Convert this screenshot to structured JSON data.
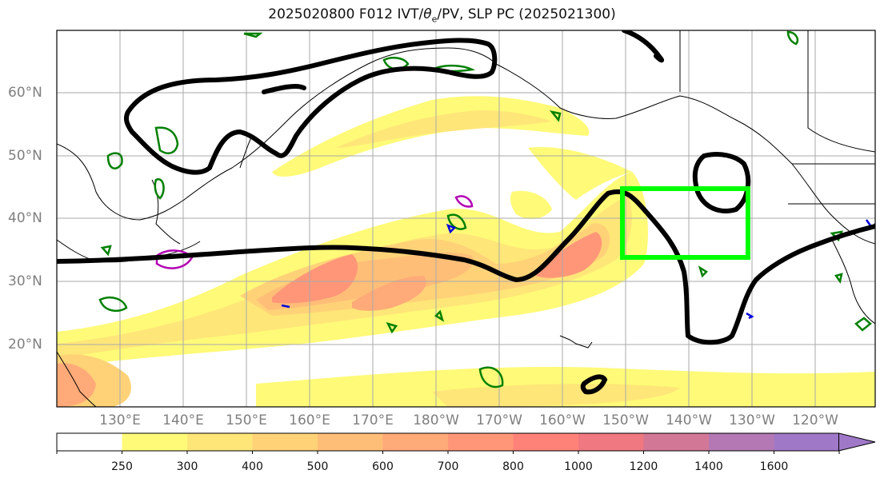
{
  "title": {
    "prefix": "2025020800 F012 IVT/",
    "theta": "θ",
    "sub": "e",
    "suffix": "/PV, SLP PC (2025021300)"
  },
  "lat_labels": [
    "60°N",
    "50°N",
    "40°N",
    "30°N",
    "20°N"
  ],
  "lon_labels": [
    "130°E",
    "140°E",
    "150°E",
    "160°E",
    "170°E",
    "180°W",
    "170°W",
    "160°W",
    "150°W",
    "140°W",
    "130°W",
    "120°W"
  ],
  "colorbar": {
    "labels": [
      "250",
      "300",
      "400",
      "500",
      "600",
      "700",
      "800",
      "1000",
      "1200",
      "1400",
      "1600"
    ],
    "colors": [
      "#ffffff",
      "#fffa78",
      "#ffe678",
      "#ffd278",
      "#ffbe78",
      "#ffaa78",
      "#ff9678",
      "#ff8278",
      "#f07880",
      "#d27896",
      "#b478b4",
      "#a078c8"
    ]
  },
  "highlight_box": {
    "color": "#00ff00"
  }
}
